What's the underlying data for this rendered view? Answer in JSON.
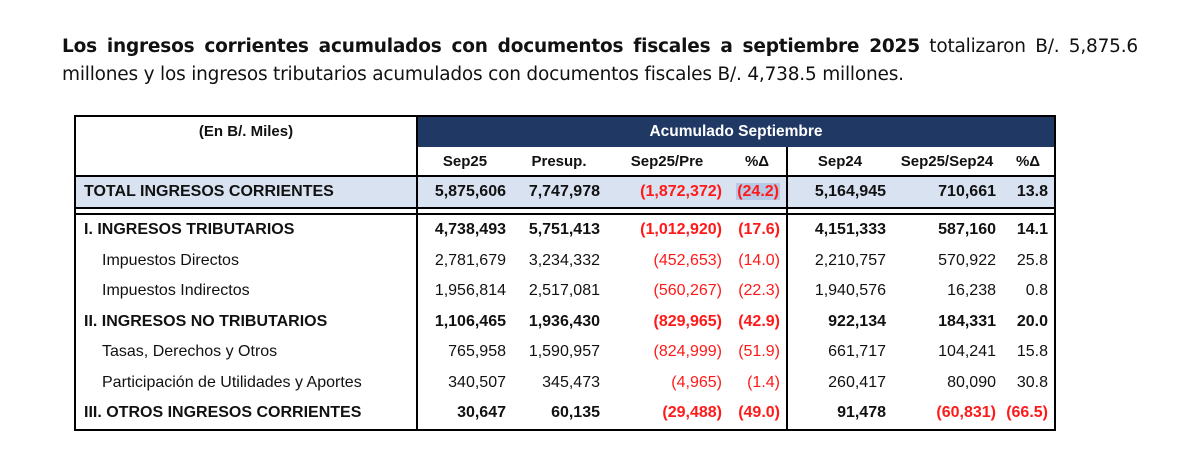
{
  "paragraph": {
    "bold_text": "Los ingresos corrientes acumulados con documentos fiscales a septiembre 2025",
    "rest_text": " totalizaron B/. 5,875.6 millones y los ingresos tributarios acumulados con documentos fiscales B/. 4,738.5 millones."
  },
  "table": {
    "unit_label": "(En B/. Miles)",
    "group_header": "Acumulado Septiembre",
    "columns": [
      "Sep25",
      "Presup.",
      "Sep25/Pre",
      "%Δ",
      "Sep24",
      "Sep25/Sep24",
      "%Δ"
    ],
    "total": {
      "label": "TOTAL INGRESOS CORRIENTES",
      "values": [
        "5,875,606",
        "7,747,978",
        "(1,872,372)",
        "(24.2)",
        "5,164,945",
        "710,661",
        "13.8"
      ]
    },
    "rows": [
      {
        "label": "I. INGRESOS TRIBUTARIOS",
        "values": [
          "4,738,493",
          "5,751,413",
          "(1,012,920)",
          "(17.6)",
          "4,151,333",
          "587,160",
          "14.1"
        ]
      },
      {
        "label": "Impuestos Directos",
        "values": [
          "2,781,679",
          "3,234,332",
          "(452,653)",
          "(14.0)",
          "2,210,757",
          "570,922",
          "25.8"
        ]
      },
      {
        "label": "Impuestos Indirectos",
        "values": [
          "1,956,814",
          "2,517,081",
          "(560,267)",
          "(22.3)",
          "1,940,576",
          "16,238",
          "0.8"
        ]
      },
      {
        "label": "II. INGRESOS NO TRIBUTARIOS",
        "values": [
          "1,106,465",
          "1,936,430",
          "(829,965)",
          "(42.9)",
          "922,134",
          "184,331",
          "20.0"
        ]
      },
      {
        "label": "Tasas, Derechos y Otros",
        "values": [
          "765,958",
          "1,590,957",
          "(824,999)",
          "(51.9)",
          "661,717",
          "104,241",
          "15.8"
        ]
      },
      {
        "label": "Participación de Utilidades y Aportes",
        "values": [
          "340,507",
          "345,473",
          "(4,965)",
          "(1.4)",
          "260,417",
          "80,090",
          "30.8"
        ]
      },
      {
        "label": "III. OTROS INGRESOS CORRIENTES",
        "values": [
          "30,647",
          "60,135",
          "(29,488)",
          "(49.0)",
          "91,478",
          "(60,831)",
          "(66.5)"
        ]
      }
    ],
    "colors": {
      "header_bg": "#1f3864",
      "total_bg": "#d9e2f0",
      "negative": "#ff1a1a"
    }
  }
}
